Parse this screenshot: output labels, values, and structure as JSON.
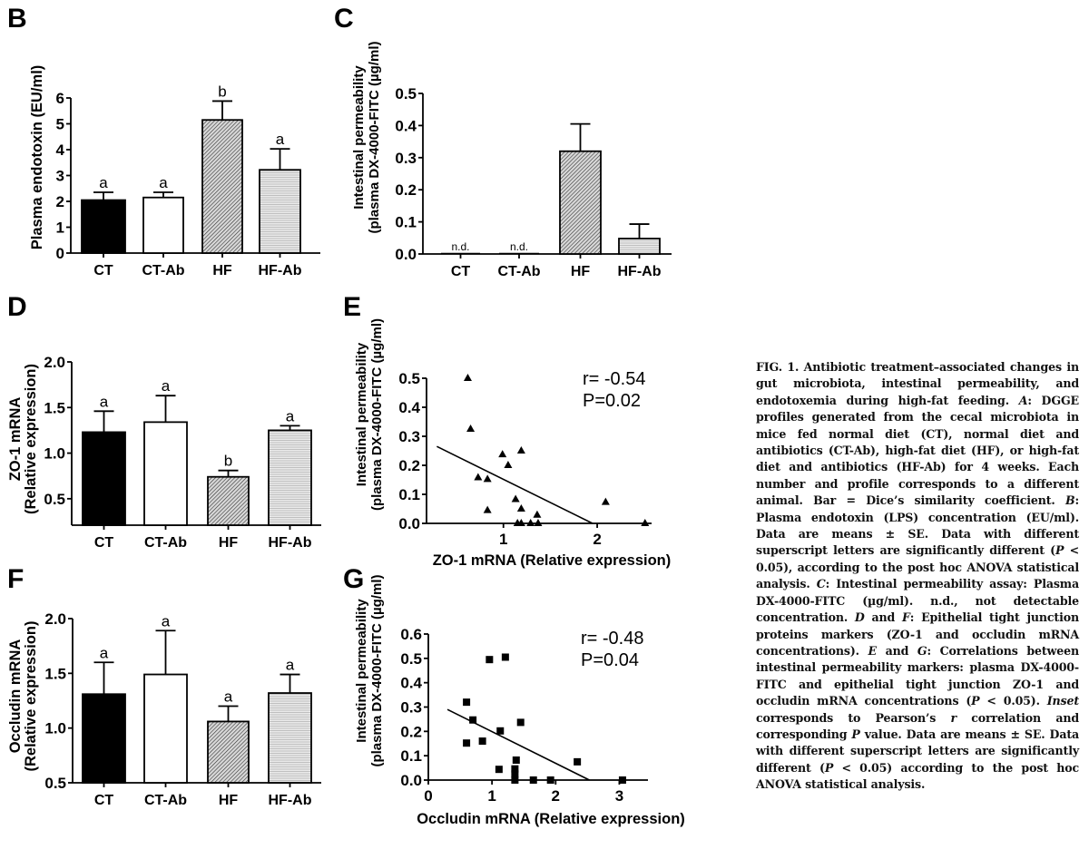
{
  "chart_data": [
    {
      "panel": "B",
      "type": "bar",
      "ylabel": "Plasma endotoxin (EU/ml)",
      "xlabel": "",
      "categories": [
        "CT",
        "CT-Ab",
        "HF",
        "HF-Ab"
      ],
      "values": [
        2.05,
        2.15,
        5.15,
        3.22
      ],
      "errors": [
        0.3,
        0.2,
        0.73,
        0.81
      ],
      "letters": [
        "a",
        "a",
        "b",
        "a"
      ],
      "fills": [
        "solid-black",
        "white",
        "diagonal-hatch",
        "light-gray-horizontal"
      ],
      "ylim": [
        0,
        6
      ],
      "yticks": [
        0,
        1,
        2,
        3,
        4,
        5,
        6
      ],
      "ytick_labels": [
        "0",
        "1",
        "2",
        "3",
        "4",
        "5",
        "6"
      ]
    },
    {
      "panel": "C",
      "type": "bar",
      "ylabel": "Intestinal permeability (plasma DX-4000-FITC (µg/ml)",
      "ylabel_lines": [
        "Intestinal permeability",
        "(plasma DX-4000-FITC (µg/ml)"
      ],
      "xlabel": "",
      "categories": [
        "CT",
        "CT-Ab",
        "HF",
        "HF-Ab"
      ],
      "values": [
        0,
        0,
        0.32,
        0.048
      ],
      "errors": [
        0,
        0,
        0.085,
        0.045
      ],
      "annotations": [
        "n.d.",
        "n.d.",
        "",
        ""
      ],
      "fills": [
        "solid-black",
        "white",
        "diagonal-hatch",
        "light-gray-horizontal"
      ],
      "ylim": [
        0,
        0.5
      ],
      "yticks": [
        0,
        0.1,
        0.2,
        0.3,
        0.4,
        0.5
      ],
      "ytick_labels": [
        "0.0",
        "0.1",
        "0.2",
        "0.3",
        "0.4",
        "0.5"
      ]
    },
    {
      "panel": "D",
      "type": "bar",
      "ylabel_lines": [
        "ZO-1 mRNA",
        "(Relative expression)"
      ],
      "ylabel": "ZO-1 mRNA (Relative expression)",
      "xlabel": "",
      "categories": [
        "CT",
        "CT-Ab",
        "HF",
        "HF-Ab"
      ],
      "values": [
        1.23,
        1.34,
        0.74,
        1.25
      ],
      "errors": [
        0.23,
        0.29,
        0.07,
        0.05
      ],
      "letters": [
        "a",
        "a",
        "b",
        "a"
      ],
      "fills": [
        "solid-black",
        "white",
        "diagonal-hatch",
        "light-gray-horizontal"
      ],
      "ylim": [
        0.21,
        2.0
      ],
      "yticks": [
        0.5,
        1.0,
        1.5,
        2.0
      ],
      "ytick_labels": [
        "0.5",
        "1.0",
        "1.5",
        "2.0"
      ]
    },
    {
      "panel": "E",
      "type": "scatter",
      "ylabel_lines": [
        "Intestinal permeability",
        "(plasma DX-4000-FITC (µg/ml)"
      ],
      "ylabel": "Intestinal permeability (plasma DX-4000-FITC (µg/ml)",
      "xlabel": "ZO-1 mRNA (Relative expression)",
      "marker": "triangle",
      "points": [
        [
          0.62,
          0.5
        ],
        [
          0.65,
          0.325
        ],
        [
          0.99,
          0.237
        ],
        [
          1.19,
          0.25
        ],
        [
          1.05,
          0.2
        ],
        [
          0.73,
          0.158
        ],
        [
          0.83,
          0.152
        ],
        [
          1.13,
          0.083
        ],
        [
          0.83,
          0.045
        ],
        [
          1.19,
          0.05
        ],
        [
          1.36,
          0.029
        ],
        [
          1.15,
          0.0
        ],
        [
          1.19,
          0.0
        ],
        [
          1.29,
          0.0
        ],
        [
          1.37,
          0.0
        ],
        [
          2.09,
          0.073
        ],
        [
          2.51,
          0.0
        ]
      ],
      "fit_line": [
        [
          0.29,
          0.265
        ],
        [
          1.95,
          0.0
        ]
      ],
      "inset": [
        "r= -0.54",
        "P=0.02"
      ],
      "xlim": [
        0.18,
        2.58
      ],
      "ylim": [
        0,
        0.5
      ],
      "xticks": [
        1,
        2
      ],
      "xtick_labels": [
        "1",
        "2"
      ],
      "yticks": [
        0,
        0.1,
        0.2,
        0.3,
        0.4,
        0.5
      ],
      "ytick_labels": [
        "0.0",
        "0.1",
        "0.2",
        "0.3",
        "0.4",
        "0.5"
      ]
    },
    {
      "panel": "F",
      "type": "bar",
      "ylabel_lines": [
        "Occludin mRNA",
        "(Relative expression)"
      ],
      "ylabel": "Occludin mRNA (Relative expression)",
      "xlabel": "",
      "categories": [
        "CT",
        "CT-Ab",
        "HF",
        "HF-Ab"
      ],
      "values": [
        1.31,
        1.49,
        1.06,
        1.32
      ],
      "errors": [
        0.29,
        0.4,
        0.14,
        0.17
      ],
      "letters": [
        "a",
        "a",
        "a",
        "a"
      ],
      "fills": [
        "solid-black",
        "white",
        "diagonal-hatch",
        "light-gray-horizontal"
      ],
      "ylim": [
        0.5,
        2.0
      ],
      "yticks": [
        0.5,
        1.0,
        1.5,
        2.0
      ],
      "ytick_labels": [
        "0.5",
        "1.0",
        "1.5",
        "2.0"
      ]
    },
    {
      "panel": "G",
      "type": "scatter",
      "ylabel_lines": [
        "Intestinal permeability",
        "(plasma DX-4000-FITC (µg/ml)"
      ],
      "ylabel": "Intestinal permeability (plasma DX-4000-FITC (µg/ml)",
      "xlabel": "Occludin mRNA (Relative expression)",
      "marker": "square",
      "points": [
        [
          0.96,
          0.495
        ],
        [
          1.21,
          0.505
        ],
        [
          0.6,
          0.32
        ],
        [
          0.7,
          0.247
        ],
        [
          1.13,
          0.202
        ],
        [
          1.45,
          0.237
        ],
        [
          0.6,
          0.152
        ],
        [
          0.85,
          0.16
        ],
        [
          1.38,
          0.082
        ],
        [
          1.11,
          0.044
        ],
        [
          1.36,
          0.046
        ],
        [
          1.36,
          0.025
        ],
        [
          1.36,
          0.0
        ],
        [
          1.65,
          0.0
        ],
        [
          1.92,
          0.0
        ],
        [
          2.34,
          0.075
        ],
        [
          3.05,
          0.0
        ]
      ],
      "fit_line": [
        [
          0.3,
          0.29
        ],
        [
          2.53,
          0.0
        ]
      ],
      "inset": [
        "r= -0.48",
        "P=0.04"
      ],
      "xlim": [
        0,
        3.45
      ],
      "ylim": [
        0,
        0.6
      ],
      "xticks": [
        0,
        1,
        2,
        3
      ],
      "xtick_labels": [
        "0",
        "1",
        "2",
        "3"
      ],
      "yticks": [
        0,
        0.1,
        0.2,
        0.3,
        0.4,
        0.5,
        0.6
      ],
      "ytick_labels": [
        "0.0",
        "0.1",
        "0.2",
        "0.3",
        "0.4",
        "0.5",
        "0.6"
      ]
    }
  ],
  "caption": {
    "label": "FIG. 1.",
    "segments": [
      {
        "t": "FIG. 1. Antibiotic treatment–associated changes in gut microbiota, intestinal permeability, and endotoxemia during high-fat feeding. "
      },
      {
        "t": "A",
        "i": true
      },
      {
        "t": ": DGGE profiles generated from the cecal microbiota in mice fed normal diet (CT), normal diet and antibiotics (CT-Ab), high-fat diet (HF), or high-fat diet and antibiotics (HF-Ab) for 4 weeks. Each number and profile corresponds to a different animal. Bar = Dice’s similarity coefficient. "
      },
      {
        "t": "B",
        "i": true
      },
      {
        "t": ": Plasma endotoxin (LPS) concentration (EU/ml). Data are means ± SE. Data with different superscript letters are significantly different ("
      },
      {
        "t": "P",
        "i": true
      },
      {
        "t": " < 0.05), according to the post hoc ANOVA statistical analysis. "
      },
      {
        "t": "C",
        "i": true
      },
      {
        "t": ": Intestinal permeability assay: Plasma DX-4000-FITC (µg/ml). n.d., not detectable concentration. "
      },
      {
        "t": "D",
        "i": true
      },
      {
        "t": " and "
      },
      {
        "t": "F",
        "i": true
      },
      {
        "t": ": Epithelial tight junction proteins markers (ZO-1 and occludin mRNA concentrations). "
      },
      {
        "t": "E",
        "i": true
      },
      {
        "t": " and "
      },
      {
        "t": "G",
        "i": true
      },
      {
        "t": ": Correlations between intestinal permeability markers: plasma DX-4000-FITC and epithelial tight junction ZO-1 and occludin mRNA concentrations ("
      },
      {
        "t": "P",
        "i": true
      },
      {
        "t": " < 0.05). "
      },
      {
        "t": "Inset",
        "i": true
      },
      {
        "t": " corresponds to Pearson’s "
      },
      {
        "t": "r",
        "i": true
      },
      {
        "t": " correlation and corresponding "
      },
      {
        "t": "P",
        "i": true
      },
      {
        "t": " value. Data are means ± SE. Data with different superscript letters are significantly different ("
      },
      {
        "t": "P",
        "i": true
      },
      {
        "t": " < 0.05) according to the post hoc ANOVA statistical analysis."
      }
    ]
  }
}
